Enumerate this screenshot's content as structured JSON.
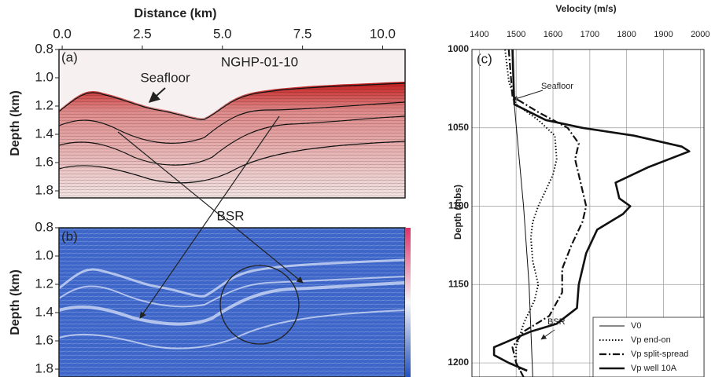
{
  "chart_data": [
    {
      "type": "image",
      "title": "Distance (km)",
      "ylabel": "Depth (km)",
      "panel_label": "(a)",
      "annotations": [
        "NGHP-01-10",
        "Seafloor"
      ],
      "xlim": [
        -0.1,
        10.7
      ],
      "xticks": [
        {
          "value": 0,
          "label": "0.0"
        },
        2.5,
        {
          "value": 5,
          "label": "5.0"
        },
        7.5,
        {
          "value": 10,
          "label": "10.0"
        }
      ],
      "ylim": [
        0.8,
        1.85
      ],
      "yticks": [
        0.8,
        {
          "value": 1,
          "label": "1.0"
        },
        1.2,
        1.4,
        1.6,
        1.8
      ]
    },
    {
      "type": "image",
      "ylabel": "Depth (km)",
      "panel_label": "(b)",
      "annotations": [
        "BSR"
      ],
      "ylim": [
        0.8,
        1.85
      ],
      "yticks": [
        0.8,
        {
          "value": 1,
          "label": "1.0"
        },
        1.2,
        1.4,
        1.6,
        1.8
      ]
    },
    {
      "type": "line",
      "title": "Velocity (m/s)",
      "ylabel": "Depth (mbs)",
      "panel_label": "(c)",
      "annotations": [
        "Seafloor",
        "BSR"
      ],
      "grid": true,
      "legend": "lower right",
      "xlim": [
        1380,
        2010
      ],
      "xticks": [
        1400,
        1500,
        1600,
        1700,
        1800,
        1900,
        2000
      ],
      "ylim": [
        1000,
        1209
      ],
      "yticks": [
        1000,
        1050,
        1100,
        1150,
        1200
      ],
      "series": [
        {
          "name": "V0",
          "color": "#111111",
          "style": "thin",
          "y": [
            1000,
            1035,
            1100,
            1150,
            1209
          ],
          "values": [
            1492,
            1495,
            1520,
            1535,
            1545
          ]
        },
        {
          "name": "Vp end-on",
          "color": "#111111",
          "style": "dotted",
          "y": [
            1000,
            1020,
            1035,
            1045,
            1055,
            1070,
            1080,
            1090,
            1100,
            1110,
            1120,
            1135,
            1150,
            1160,
            1175,
            1190,
            1200,
            1209
          ],
          "values": [
            1470,
            1480,
            1500,
            1560,
            1605,
            1610,
            1600,
            1580,
            1560,
            1545,
            1540,
            1545,
            1560,
            1550,
            1520,
            1500,
            1500,
            1520
          ]
        },
        {
          "name": "Vp split-spread",
          "color": "#111111",
          "style": "dashdot",
          "y": [
            1000,
            1030,
            1040,
            1050,
            1060,
            1070,
            1080,
            1100,
            1110,
            1125,
            1140,
            1155,
            1170,
            1180,
            1190,
            1200,
            1209
          ],
          "values": [
            1480,
            1490,
            1560,
            1640,
            1670,
            1660,
            1670,
            1690,
            1680,
            1650,
            1625,
            1625,
            1590,
            1520,
            1490,
            1500,
            1520
          ]
        },
        {
          "name": "Vp well 10A",
          "color": "#111111",
          "style": "thick",
          "y": [
            1000,
            1035,
            1045,
            1050,
            1055,
            1062,
            1065,
            1075,
            1085,
            1095,
            1100,
            1105,
            1115,
            1130,
            1150,
            1165,
            1175,
            1180,
            1185,
            1190,
            1195,
            1200,
            1205
          ],
          "values": [
            1490,
            1495,
            1580,
            1680,
            1820,
            1950,
            1970,
            1860,
            1770,
            1780,
            1810,
            1790,
            1720,
            1690,
            1670,
            1665,
            1610,
            1540,
            1490,
            1440,
            1440,
            1480,
            1530
          ]
        }
      ]
    }
  ]
}
